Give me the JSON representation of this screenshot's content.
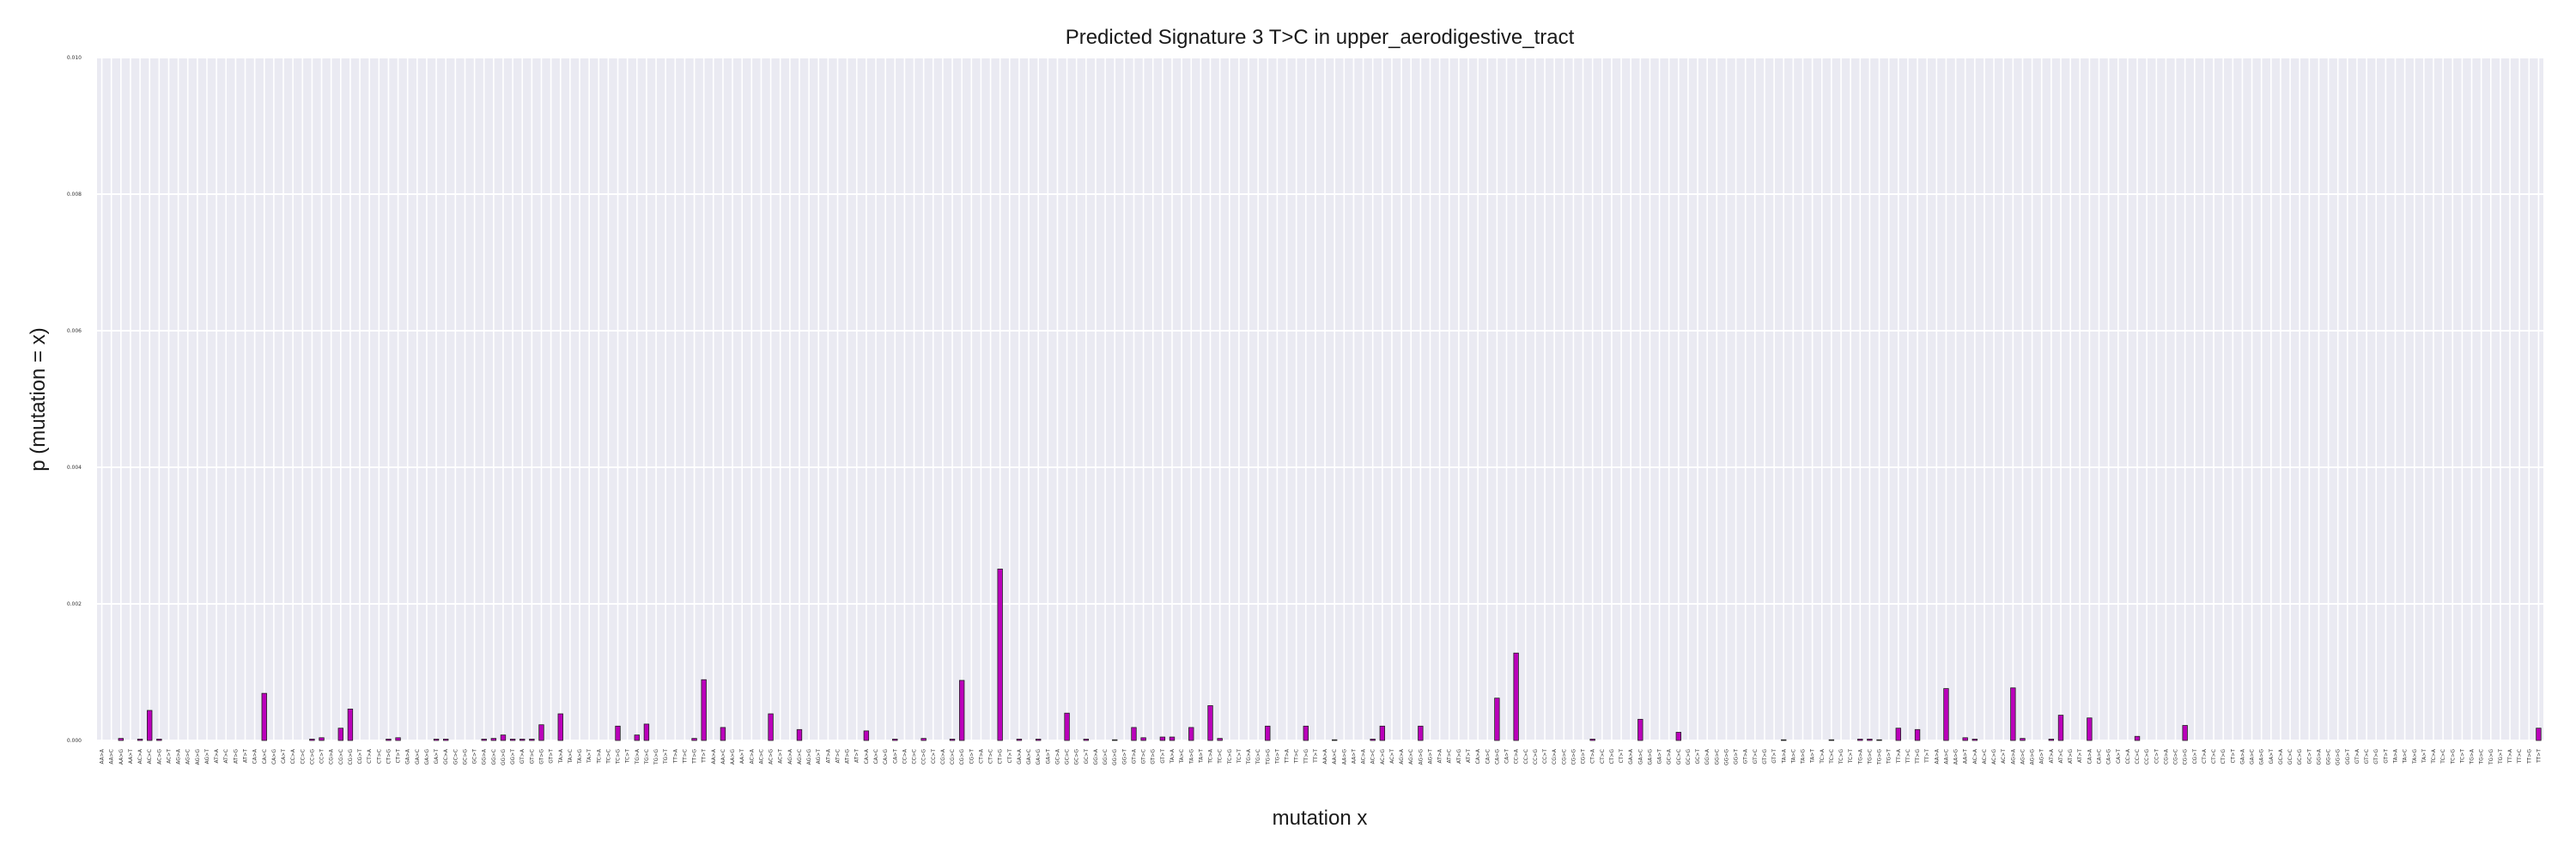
{
  "chart_data": {
    "type": "bar",
    "title": "Predicted Signature 3 T>C in upper_aerodigestive_tract",
    "xlabel": "mutation x",
    "ylabel": "p (mutation = x)",
    "ylim": [
      0,
      0.01
    ],
    "yticks": [
      0.0,
      0.002,
      0.004,
      0.006,
      0.008,
      0.01
    ],
    "ytick_labels": [
      "0.000",
      "0.002",
      "0.004",
      "0.006",
      "0.008",
      "0.010"
    ],
    "grid": true,
    "legend": "none",
    "colors": {
      "bar": "#bb00bb",
      "edge": "#222222",
      "plot_bg": "#eaeaf2",
      "grid": "#ffffff"
    },
    "categories": [
      "AA>A",
      "AA>C",
      "AA>G",
      "AA>T",
      "AC>A",
      "AC>C",
      "AC>G",
      "AC>T",
      "AG>A",
      "AG>C",
      "AG>G",
      "AG>T",
      "AT>A",
      "AT>C",
      "AT>G",
      "AT>T",
      "CA>A",
      "CA>C",
      "CA>G",
      "CA>T",
      "CC>A",
      "CC>C",
      "CC>G",
      "CC>T",
      "CG>A",
      "CG>C",
      "CG>G",
      "CG>T",
      "CT>A",
      "CT>C",
      "CT>G",
      "CT>T",
      "GA>A",
      "GA>C",
      "GA>G",
      "GA>T",
      "GC>A",
      "GC>C",
      "GC>G",
      "GC>T",
      "GG>A",
      "GG>C",
      "GG>G",
      "GG>T",
      "GT>A",
      "GT>C",
      "GT>G",
      "GT>T",
      "TA>A",
      "TA>C",
      "TA>G",
      "TA>T",
      "TC>A",
      "TC>C",
      "TC>G",
      "TC>T",
      "TG>A",
      "TG>C",
      "TG>G",
      "TG>T",
      "TT>A",
      "TT>C",
      "TT>G",
      "TT>T",
      "AA>A",
      "AA>C",
      "AA>G",
      "AA>T",
      "AC>A",
      "AC>C",
      "AC>G",
      "AC>T",
      "AG>A",
      "AG>C",
      "AG>G",
      "AG>T",
      "AT>A",
      "AT>C",
      "AT>G",
      "AT>T",
      "CA>A",
      "CA>C",
      "CA>G",
      "CA>T",
      "CC>A",
      "CC>C",
      "CC>G",
      "CC>T",
      "CG>A",
      "CG>C",
      "CG>G",
      "CG>T",
      "CT>A",
      "CT>C",
      "CT>G",
      "CT>T",
      "GA>A",
      "GA>C",
      "GA>G",
      "GA>T",
      "GC>A",
      "GC>C",
      "GC>G",
      "GC>T",
      "GG>A",
      "GG>C",
      "GG>G",
      "GG>T",
      "GT>A",
      "GT>C",
      "GT>G",
      "GT>T",
      "TA>A",
      "TA>C",
      "TA>G",
      "TA>T",
      "TC>A",
      "TC>C",
      "TC>G",
      "TC>T",
      "TG>A",
      "TG>C",
      "TG>G",
      "TG>T",
      "TT>A",
      "TT>C",
      "TT>G",
      "TT>T",
      "AA>A",
      "AA>C",
      "AA>G",
      "AA>T",
      "AC>A",
      "AC>C",
      "AC>G",
      "AC>T",
      "AG>A",
      "AG>C",
      "AG>G",
      "AG>T",
      "AT>A",
      "AT>C",
      "AT>G",
      "AT>T",
      "CA>A",
      "CA>C",
      "CA>G",
      "CA>T",
      "CC>A",
      "CC>C",
      "CC>G",
      "CC>T",
      "CG>A",
      "CG>C",
      "CG>G",
      "CG>T",
      "CT>A",
      "CT>C",
      "CT>G",
      "CT>T",
      "GA>A",
      "GA>C",
      "GA>G",
      "GA>T",
      "GC>A",
      "GC>C",
      "GC>G",
      "GC>T",
      "GG>A",
      "GG>C",
      "GG>G",
      "GG>T",
      "GT>A",
      "GT>C",
      "GT>G",
      "GT>T",
      "TA>A",
      "TA>C",
      "TA>G",
      "TA>T",
      "TC>A",
      "TC>C",
      "TC>G",
      "TC>T",
      "TG>A",
      "TG>C",
      "TG>G",
      "TG>T",
      "TT>A",
      "TT>C",
      "TT>G",
      "TT>T",
      "AA>A",
      "AA>C",
      "AA>G",
      "AA>T",
      "AC>A",
      "AC>C",
      "AC>G",
      "AC>T",
      "AG>A",
      "AG>C",
      "AG>G",
      "AG>T",
      "AT>A",
      "AT>C",
      "AT>G",
      "AT>T",
      "CA>A",
      "CA>C",
      "CA>G",
      "CA>T",
      "CC>A",
      "CC>C",
      "CC>G",
      "CC>T",
      "CG>A",
      "CG>C",
      "CG>G",
      "CG>T",
      "CT>A",
      "CT>C",
      "CT>G",
      "CT>T",
      "GA>A",
      "GA>C",
      "GA>G",
      "GA>T",
      "GC>A",
      "GC>C",
      "GC>G",
      "GC>T",
      "GG>A",
      "GG>C",
      "GG>G",
      "GG>T",
      "GT>A",
      "GT>C",
      "GT>G",
      "GT>T",
      "TA>A",
      "TA>C",
      "TA>G",
      "TA>T",
      "TC>A",
      "TC>C",
      "TC>G",
      "TC>T",
      "TG>A",
      "TG>C",
      "TG>G",
      "TG>T",
      "TT>A",
      "TT>C",
      "TT>G",
      "TT>T"
    ],
    "values": [
      0,
      0,
      3e-05,
      0,
      2e-05,
      0.00044,
      2e-05,
      0,
      0,
      0,
      0,
      0,
      0,
      0,
      0,
      0,
      0,
      0.00069,
      0,
      0,
      0,
      0,
      2e-05,
      4e-05,
      0,
      0.00018,
      0.00046,
      0,
      0,
      0,
      2e-05,
      4e-05,
      0,
      0,
      0,
      2e-05,
      2e-05,
      0,
      0,
      0,
      2e-05,
      3e-05,
      8e-05,
      2e-05,
      2e-05,
      2e-05,
      0.00023,
      0,
      0.00039,
      0,
      0,
      0,
      0,
      0,
      0.00021,
      0,
      8e-05,
      0.00024,
      0,
      0,
      0,
      0,
      3e-05,
      0.00089,
      0,
      0.00019,
      0,
      0,
      0,
      0,
      0.00039,
      0,
      0,
      0.00016,
      0,
      0,
      0,
      0,
      0,
      0,
      0.00014,
      0,
      0,
      2e-05,
      0,
      0,
      3e-05,
      0,
      0,
      2e-05,
      0.00088,
      0,
      0,
      0,
      0.00251,
      0,
      2e-05,
      0,
      2e-05,
      0,
      0,
      0.0004,
      0,
      2e-05,
      0,
      0,
      1e-05,
      0,
      0.00019,
      4e-05,
      0,
      5e-05,
      5e-05,
      0,
      0.00019,
      0,
      0.00051,
      3e-05,
      0,
      0,
      0,
      0,
      0.00021,
      0,
      0,
      0,
      0.00021,
      0,
      0,
      1e-05,
      0,
      0,
      0,
      2e-05,
      0.00021,
      0,
      0,
      0,
      0.00021,
      0,
      0,
      0,
      0,
      0,
      0,
      0,
      0.00062,
      0,
      0.00128,
      0,
      0,
      0,
      0,
      0,
      0,
      0,
      2e-05,
      0,
      0,
      0,
      0,
      0.00031,
      0,
      0,
      0,
      0.00012,
      0,
      0,
      0,
      0,
      0,
      0,
      0,
      0,
      0,
      0,
      1e-05,
      0,
      0,
      0,
      0,
      1e-05,
      0,
      0,
      2e-05,
      2e-05,
      1e-05,
      0,
      0.00018,
      0,
      0.00016,
      0,
      0,
      0.00076,
      0,
      4e-05,
      2e-05,
      0,
      0,
      0,
      0.00077,
      3e-05,
      0,
      0,
      2e-05,
      0.00037,
      0,
      0,
      0.00033,
      0,
      0,
      0,
      0,
      6e-05,
      0,
      0,
      0,
      0,
      0.00022,
      0,
      0,
      0,
      0,
      0,
      0,
      0,
      0,
      0,
      0,
      0,
      0,
      0,
      0,
      0,
      0,
      0,
      0,
      0,
      0,
      0,
      0,
      0,
      0,
      0,
      0,
      0,
      0,
      0,
      0,
      0,
      0,
      0,
      0,
      0,
      0,
      0.00018
    ]
  }
}
